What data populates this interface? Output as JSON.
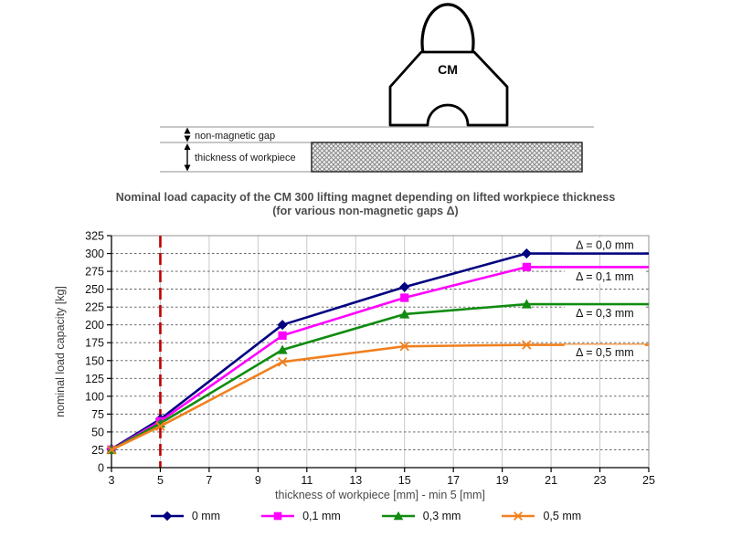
{
  "diagram": {
    "magnet_label": "CM",
    "gap_label": "non-magnetic gap",
    "thickness_label": "thickness of workpiece"
  },
  "chart_data": {
    "type": "line",
    "title": "Nominal load capacity of the CM 300 lifting magnet depending on lifted workpiece thickness",
    "subtitle": "(for various non-magnetic gaps Δ)",
    "xlabel": "thickness of workpiece [mm] - min 5 [mm]",
    "ylabel": "nominal load capacity [kg]",
    "xlim": [
      3,
      25
    ],
    "ylim": [
      0,
      325
    ],
    "xticks": [
      3,
      5,
      7,
      9,
      11,
      13,
      15,
      17,
      19,
      21,
      23,
      25
    ],
    "yticks": [
      0,
      25,
      50,
      75,
      100,
      125,
      150,
      175,
      200,
      225,
      250,
      275,
      300,
      325
    ],
    "grid": true,
    "legend_position": "bottom",
    "x": [
      3,
      5,
      10,
      15,
      20,
      25
    ],
    "series": [
      {
        "name": "0 mm",
        "color": "#000080",
        "marker": "diamond",
        "values": [
          26,
          68,
          200,
          253,
          300,
          300
        ],
        "annotation": "Δ = 0,0 mm",
        "annotation_y": 312
      },
      {
        "name": "0,1 mm",
        "color": "#ff00ff",
        "marker": "square",
        "values": [
          25,
          65,
          185,
          238,
          281,
          281
        ],
        "annotation": "Δ = 0,1 mm",
        "annotation_y": 268
      },
      {
        "name": "0,3 mm",
        "color": "#108c10",
        "marker": "triangle",
        "values": [
          25,
          62,
          165,
          215,
          229,
          229
        ],
        "annotation": "Δ = 0,3 mm",
        "annotation_y": 217
      },
      {
        "name": "0,5 mm",
        "color": "#f0801e",
        "marker": "x",
        "values": [
          25,
          58,
          148,
          170,
          172,
          172
        ],
        "annotation": "Δ = 0,5 mm",
        "annotation_y": 162
      }
    ],
    "annotation_x": 23.2,
    "reference_line": {
      "x": 5,
      "color": "#c00000",
      "style": "long-dash",
      "meaning": "min 5 mm"
    }
  }
}
